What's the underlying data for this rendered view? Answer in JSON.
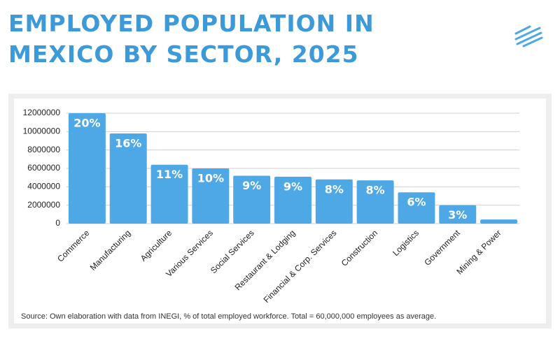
{
  "chart_data": {
    "type": "bar",
    "title": "EMPLOYED POPULATION IN MEXICO BY SECTOR, 2025",
    "source": "Source: Own elaboration with data from INEGI, % of total employed workforce. Total = 60,000,000 employees as average.",
    "categories": [
      "Commerce",
      "Manufacturing",
      "Agriculture",
      "Various Services",
      "Social Services",
      "Restaurant & Lodging",
      "Financial & Corp. Services",
      "Construction",
      "Logistics",
      "Government",
      "Mining & Power"
    ],
    "values": [
      12000000,
      9800000,
      6400000,
      6000000,
      5200000,
      5100000,
      4800000,
      4700000,
      3400000,
      2000000,
      450000
    ],
    "value_labels": [
      "20%",
      "16%",
      "11%",
      "10%",
      "9%",
      "9%",
      "8%",
      "8%",
      "6%",
      "3%",
      null
    ],
    "color": "#4fa8e6",
    "ylim": [
      0,
      12000000
    ],
    "yticks": [
      0,
      2000000,
      4000000,
      6000000,
      8000000,
      10000000,
      12000000
    ],
    "grid": true
  }
}
